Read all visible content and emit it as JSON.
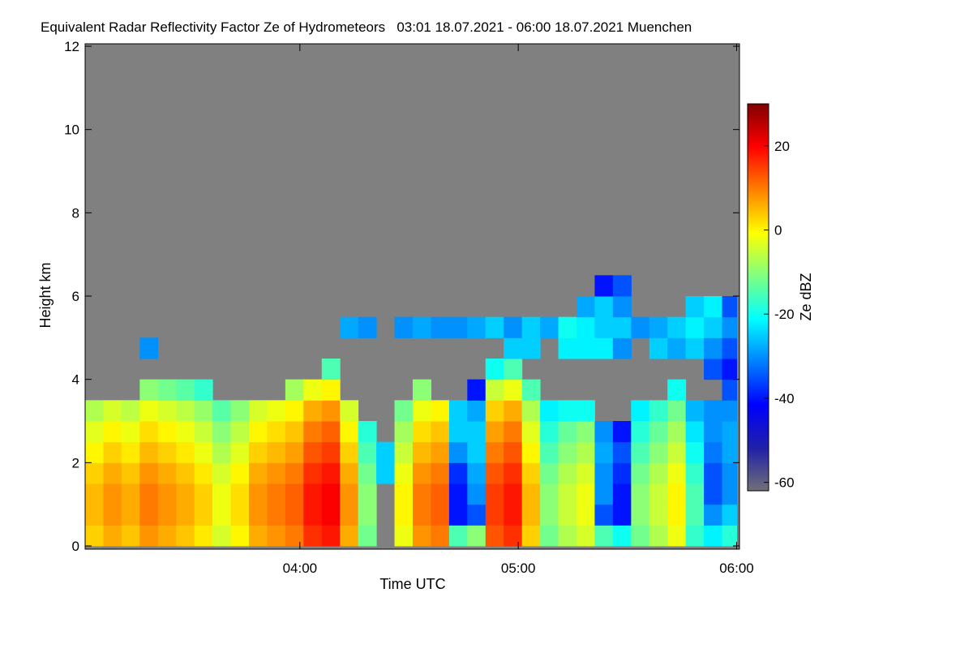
{
  "chart_data": {
    "type": "heatmap",
    "title": "Equivalent Radar Reflectivity Factor Ze of Hydrometeors   03:01 18.07.2021 - 06:00 18.07.2021 Muenchen",
    "xlabel": "Time UTC",
    "ylabel": "Height km",
    "colorbar_label": "Ze dBZ",
    "xlim": [
      181,
      360
    ],
    "xticks": [
      {
        "value": 240,
        "label": "04:00"
      },
      {
        "value": 300,
        "label": "05:00"
      },
      {
        "value": 360,
        "label": "06:00"
      }
    ],
    "ylim": [
      0,
      12
    ],
    "yticks": [
      0,
      2,
      4,
      6,
      8,
      10,
      12
    ],
    "clim": [
      -62,
      30
    ],
    "cticks": [
      -60,
      -40,
      -20,
      0,
      20
    ],
    "colormap": [
      "#707078",
      "#2020a8",
      "#0000ff",
      "#0080ff",
      "#00ffff",
      "#80ff80",
      "#ffff00",
      "#ff8000",
      "#ff0000",
      "#800000"
    ],
    "background": "#808080",
    "xbins": [
      181,
      186,
      191,
      196,
      201,
      206,
      211,
      216,
      221,
      226,
      231,
      236,
      241,
      246,
      251,
      256,
      261,
      266,
      271,
      276,
      281,
      286,
      291,
      296,
      301,
      306,
      311,
      316,
      321,
      326,
      331,
      336,
      341,
      346,
      351,
      356,
      360
    ],
    "ybins": [
      0,
      0.5,
      1,
      1.5,
      2,
      2.5,
      3,
      3.5,
      4,
      4.5,
      5,
      5.5,
      6,
      6.5
    ],
    "z": [
      [
        3,
        6,
        4,
        8,
        6,
        4,
        1,
        -4,
        0,
        6,
        8,
        10,
        16,
        18,
        6,
        -12,
        null,
        -2,
        8,
        10,
        -15,
        -10,
        13,
        16,
        3,
        -12,
        -7,
        -4,
        -15,
        -20,
        -12,
        -7,
        -2,
        -17,
        -22,
        -18
      ],
      [
        5,
        8,
        6,
        10,
        8,
        6,
        3,
        -2,
        2,
        8,
        10,
        12,
        18,
        20,
        8,
        -10,
        null,
        0,
        10,
        12,
        -40,
        -35,
        15,
        18,
        5,
        -10,
        -5,
        -2,
        -35,
        -40,
        -10,
        -5,
        0,
        -15,
        -30,
        -25
      ],
      [
        5,
        8,
        6,
        10,
        8,
        6,
        3,
        -2,
        2,
        8,
        10,
        12,
        18,
        20,
        8,
        -10,
        null,
        0,
        10,
        12,
        -40,
        -30,
        15,
        18,
        5,
        -10,
        -5,
        -2,
        -30,
        -40,
        -10,
        -5,
        0,
        -15,
        -35,
        -30
      ],
      [
        3,
        6,
        4,
        8,
        6,
        4,
        1,
        -4,
        0,
        6,
        8,
        10,
        16,
        18,
        6,
        -12,
        -25,
        -2,
        8,
        10,
        -38,
        -28,
        13,
        16,
        3,
        -12,
        -7,
        -4,
        -30,
        -38,
        -12,
        -7,
        -2,
        -17,
        -35,
        -30
      ],
      [
        0,
        3,
        1,
        5,
        3,
        1,
        -2,
        -7,
        -3,
        3,
        5,
        7,
        13,
        15,
        3,
        -15,
        -25,
        -5,
        5,
        7,
        -30,
        -25,
        10,
        13,
        0,
        -15,
        -10,
        -7,
        -28,
        -35,
        -15,
        -10,
        -5,
        -20,
        -32,
        -28
      ],
      [
        -3,
        0,
        -2,
        2,
        0,
        -2,
        -5,
        -10,
        -6,
        0,
        2,
        4,
        10,
        12,
        0,
        -18,
        null,
        -8,
        2,
        4,
        -25,
        -25,
        7,
        10,
        -3,
        -18,
        -13,
        -10,
        -30,
        -40,
        -18,
        -13,
        -8,
        -23,
        -30,
        -28
      ],
      [
        -7,
        -4,
        -6,
        -2,
        -4,
        -6,
        -9,
        -14,
        -10,
        -4,
        -2,
        0,
        6,
        8,
        -4,
        null,
        null,
        -12,
        -2,
        0,
        -25,
        -28,
        3,
        6,
        -7,
        -22,
        -20,
        -20,
        null,
        null,
        -22,
        -17,
        -12,
        -27,
        -30,
        -30
      ],
      [
        null,
        null,
        null,
        -10,
        -12,
        -14,
        -17,
        null,
        null,
        null,
        null,
        -8,
        -2,
        0,
        null,
        null,
        null,
        null,
        -10,
        null,
        null,
        -40,
        -5,
        -2,
        -15,
        null,
        null,
        null,
        null,
        null,
        null,
        null,
        -20,
        null,
        null,
        -35
      ],
      [
        null,
        null,
        null,
        null,
        null,
        null,
        null,
        null,
        null,
        null,
        null,
        null,
        null,
        -15,
        null,
        null,
        null,
        null,
        null,
        null,
        null,
        null,
        -20,
        -15,
        null,
        null,
        null,
        null,
        null,
        null,
        null,
        null,
        null,
        null,
        -35,
        -40
      ],
      [
        null,
        null,
        null,
        -30,
        null,
        null,
        null,
        null,
        null,
        null,
        null,
        null,
        null,
        null,
        null,
        null,
        null,
        null,
        null,
        null,
        null,
        null,
        null,
        -25,
        -25,
        null,
        -22,
        -22,
        -22,
        -30,
        null,
        -25,
        -28,
        -25,
        -30,
        -35
      ],
      [
        null,
        null,
        null,
        null,
        null,
        null,
        null,
        null,
        null,
        null,
        null,
        null,
        null,
        null,
        -28,
        -30,
        null,
        -30,
        -28,
        -30,
        -30,
        -28,
        -25,
        -30,
        -25,
        -28,
        -20,
        -22,
        -25,
        -25,
        -30,
        -28,
        -25,
        -22,
        -25,
        -30
      ],
      [
        null,
        null,
        null,
        null,
        null,
        null,
        null,
        null,
        null,
        null,
        null,
        null,
        null,
        null,
        null,
        null,
        null,
        null,
        null,
        null,
        null,
        null,
        null,
        null,
        null,
        null,
        null,
        -28,
        -25,
        -30,
        null,
        null,
        null,
        -25,
        -22,
        -35
      ],
      [
        null,
        null,
        null,
        null,
        null,
        null,
        null,
        null,
        null,
        null,
        null,
        null,
        null,
        null,
        null,
        null,
        null,
        null,
        null,
        null,
        null,
        null,
        null,
        null,
        null,
        null,
        null,
        null,
        -40,
        -35,
        null,
        null,
        null,
        null,
        null,
        null
      ]
    ]
  }
}
